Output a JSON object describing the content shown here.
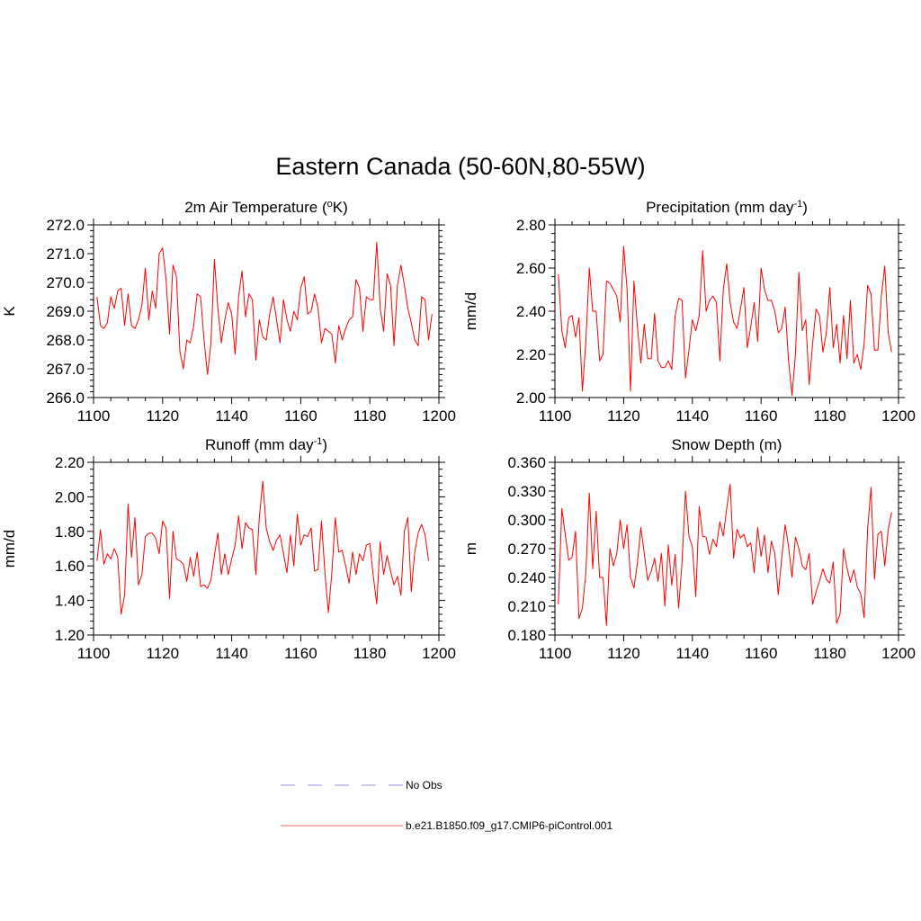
{
  "figure": {
    "title": "Eastern Canada (50-60N,80-55W)",
    "legend": {
      "items": [
        {
          "label": "No Obs",
          "color": "#a8a8e8",
          "dash": true
        },
        {
          "label": "b.e21.B1850.f09_g17.CMIP6-piControl.001",
          "color": "#ff8080",
          "dash": false
        }
      ]
    }
  },
  "chart_data": [
    {
      "type": "line",
      "title": "2m Air Temperature (",
      "title_sup": "o",
      "title_tail": "K)",
      "xlabel": "",
      "ylabel": "K",
      "xlim": [
        1100,
        1200
      ],
      "ylim": [
        266.0,
        272.0
      ],
      "xticks": [
        1100,
        1120,
        1140,
        1160,
        1180,
        1200
      ],
      "xtick_labels": [
        "1100",
        "1120",
        "1140",
        "1160",
        "1180",
        "1200"
      ],
      "yticks": [
        266.0,
        267.0,
        268.0,
        269.0,
        270.0,
        271.0,
        272.0
      ],
      "ytick_labels": [
        "266.0",
        "267.0",
        "268.0",
        "269.0",
        "270.0",
        "271.0",
        "272.0"
      ],
      "series_color": "#ff0000",
      "x_start": 1101,
      "values": [
        269.5,
        268.5,
        268.4,
        268.6,
        269.5,
        269.1,
        269.7,
        269.8,
        268.5,
        269.6,
        268.5,
        268.4,
        268.7,
        269.2,
        270.5,
        268.7,
        269.7,
        269.1,
        271.0,
        271.2,
        270.1,
        268.2,
        270.6,
        270.2,
        267.6,
        267.0,
        268.0,
        267.9,
        268.5,
        269.6,
        269.5,
        268.0,
        266.8,
        267.9,
        270.8,
        269.1,
        267.9,
        268.7,
        269.3,
        268.9,
        267.5,
        269.5,
        270.4,
        268.8,
        269.6,
        269.4,
        267.3,
        268.7,
        268.1,
        268.0,
        268.9,
        269.5,
        268.7,
        267.9,
        269.4,
        268.7,
        268.3,
        269.0,
        268.7,
        269.8,
        270.2,
        268.9,
        269.0,
        269.6,
        269.1,
        267.9,
        268.4,
        268.3,
        268.2,
        267.2,
        268.5,
        268.0,
        268.4,
        268.7,
        268.8,
        270.1,
        269.8,
        268.3,
        269.5,
        269.4,
        269.4,
        271.4,
        269.1,
        268.3,
        270.3,
        269.9,
        267.8,
        269.9,
        270.6,
        269.9,
        269.1,
        268.6,
        268.0,
        267.8,
        269.5,
        269.4,
        268.0,
        268.9
      ]
    },
    {
      "type": "line",
      "title": "Precipitation (mm day",
      "title_sup": "-1",
      "title_tail": ")",
      "xlabel": "",
      "ylabel": "mm/d",
      "xlim": [
        1100,
        1200
      ],
      "ylim": [
        2.0,
        2.8
      ],
      "xticks": [
        1100,
        1120,
        1140,
        1160,
        1180,
        1200
      ],
      "xtick_labels": [
        "1100",
        "1120",
        "1140",
        "1160",
        "1180",
        "1200"
      ],
      "yticks": [
        2.0,
        2.2,
        2.4,
        2.6,
        2.8
      ],
      "ytick_labels": [
        "2.00",
        "2.20",
        "2.40",
        "2.60",
        "2.80"
      ],
      "series_color": "#ff0000",
      "x_start": 1101,
      "values": [
        2.57,
        2.31,
        2.23,
        2.37,
        2.38,
        2.28,
        2.37,
        2.03,
        2.26,
        2.6,
        2.4,
        2.4,
        2.17,
        2.2,
        2.54,
        2.53,
        2.5,
        2.47,
        2.35,
        2.7,
        2.5,
        2.03,
        2.54,
        2.33,
        2.16,
        2.34,
        2.18,
        2.18,
        2.39,
        2.17,
        2.14,
        2.14,
        2.17,
        2.13,
        2.38,
        2.46,
        2.45,
        2.09,
        2.22,
        2.36,
        2.31,
        2.38,
        2.68,
        2.4,
        2.45,
        2.47,
        2.44,
        2.17,
        2.5,
        2.62,
        2.44,
        2.35,
        2.32,
        2.41,
        2.51,
        2.23,
        2.33,
        2.44,
        2.26,
        2.6,
        2.5,
        2.45,
        2.45,
        2.4,
        2.3,
        2.32,
        2.42,
        2.17,
        2.01,
        2.2,
        2.58,
        2.31,
        2.36,
        2.06,
        2.25,
        2.41,
        2.38,
        2.21,
        2.3,
        2.51,
        2.23,
        2.34,
        2.16,
        2.38,
        2.18,
        2.45,
        2.16,
        2.2,
        2.13,
        2.25,
        2.52,
        2.48,
        2.22,
        2.22,
        2.47,
        2.61,
        2.3,
        2.21
      ]
    },
    {
      "type": "line",
      "title": "Runoff (mm day",
      "title_sup": "-1",
      "title_tail": ")",
      "xlabel": "",
      "ylabel": "mm/d",
      "xlim": [
        1100,
        1200
      ],
      "ylim": [
        1.2,
        2.2
      ],
      "xticks": [
        1100,
        1120,
        1140,
        1160,
        1180,
        1200
      ],
      "xtick_labels": [
        "1100",
        "1120",
        "1140",
        "1160",
        "1180",
        "1200"
      ],
      "yticks": [
        1.2,
        1.4,
        1.6,
        1.8,
        2.0,
        2.2
      ],
      "ytick_labels": [
        "1.20",
        "1.40",
        "1.60",
        "1.80",
        "2.00",
        "2.20"
      ],
      "series_color": "#ff0000",
      "x_start": 1101,
      "values": [
        1.63,
        1.81,
        1.61,
        1.67,
        1.64,
        1.7,
        1.65,
        1.32,
        1.43,
        1.96,
        1.65,
        1.88,
        1.49,
        1.55,
        1.77,
        1.79,
        1.79,
        1.76,
        1.67,
        1.86,
        1.82,
        1.41,
        1.8,
        1.64,
        1.63,
        1.61,
        1.51,
        1.65,
        1.54,
        1.68,
        1.48,
        1.49,
        1.47,
        1.52,
        1.66,
        1.79,
        1.55,
        1.67,
        1.55,
        1.64,
        1.72,
        1.89,
        1.7,
        1.85,
        1.82,
        1.81,
        1.55,
        1.88,
        2.09,
        1.82,
        1.74,
        1.69,
        1.75,
        1.78,
        1.67,
        1.56,
        1.78,
        1.6,
        1.9,
        1.72,
        1.78,
        1.77,
        1.82,
        1.57,
        1.58,
        1.86,
        1.56,
        1.33,
        1.56,
        1.88,
        1.68,
        1.69,
        1.6,
        1.5,
        1.68,
        1.55,
        1.67,
        1.63,
        1.72,
        1.73,
        1.54,
        1.38,
        1.74,
        1.55,
        1.66,
        1.57,
        1.49,
        1.54,
        1.43,
        1.8,
        1.88,
        1.45,
        1.68,
        1.79,
        1.84,
        1.78,
        1.63
      ]
    },
    {
      "type": "line",
      "title": "Snow Depth (m)",
      "title_sup": "",
      "title_tail": "",
      "xlabel": "",
      "ylabel": "m",
      "xlim": [
        1100,
        1200
      ],
      "ylim": [
        0.18,
        0.36
      ],
      "xticks": [
        1100,
        1120,
        1140,
        1160,
        1180,
        1200
      ],
      "xtick_labels": [
        "1100",
        "1120",
        "1140",
        "1160",
        "1180",
        "1200"
      ],
      "yticks": [
        0.18,
        0.21,
        0.24,
        0.27,
        0.3,
        0.33,
        0.36
      ],
      "ytick_labels": [
        "0.180",
        "0.210",
        "0.240",
        "0.270",
        "0.300",
        "0.330",
        "0.360"
      ],
      "series_color": "#ff0000",
      "x_start": 1101,
      "values": [
        0.212,
        0.312,
        0.285,
        0.258,
        0.261,
        0.288,
        0.197,
        0.208,
        0.245,
        0.328,
        0.249,
        0.309,
        0.24,
        0.24,
        0.19,
        0.27,
        0.252,
        0.265,
        0.3,
        0.27,
        0.295,
        0.24,
        0.229,
        0.255,
        0.292,
        0.265,
        0.237,
        0.246,
        0.26,
        0.236,
        0.265,
        0.21,
        0.274,
        0.232,
        0.264,
        0.208,
        0.256,
        0.33,
        0.283,
        0.272,
        0.22,
        0.314,
        0.283,
        0.282,
        0.264,
        0.28,
        0.272,
        0.298,
        0.283,
        0.312,
        0.337,
        0.26,
        0.29,
        0.281,
        0.285,
        0.272,
        0.276,
        0.245,
        0.292,
        0.262,
        0.284,
        0.245,
        0.278,
        0.265,
        0.222,
        0.26,
        0.295,
        0.272,
        0.24,
        0.282,
        0.27,
        0.252,
        0.248,
        0.265,
        0.212,
        0.225,
        0.236,
        0.249,
        0.238,
        0.234,
        0.256,
        0.192,
        0.202,
        0.27,
        0.25,
        0.235,
        0.248,
        0.23,
        0.223,
        0.198,
        0.29,
        0.334,
        0.238,
        0.285,
        0.288,
        0.252,
        0.29,
        0.308
      ]
    }
  ]
}
